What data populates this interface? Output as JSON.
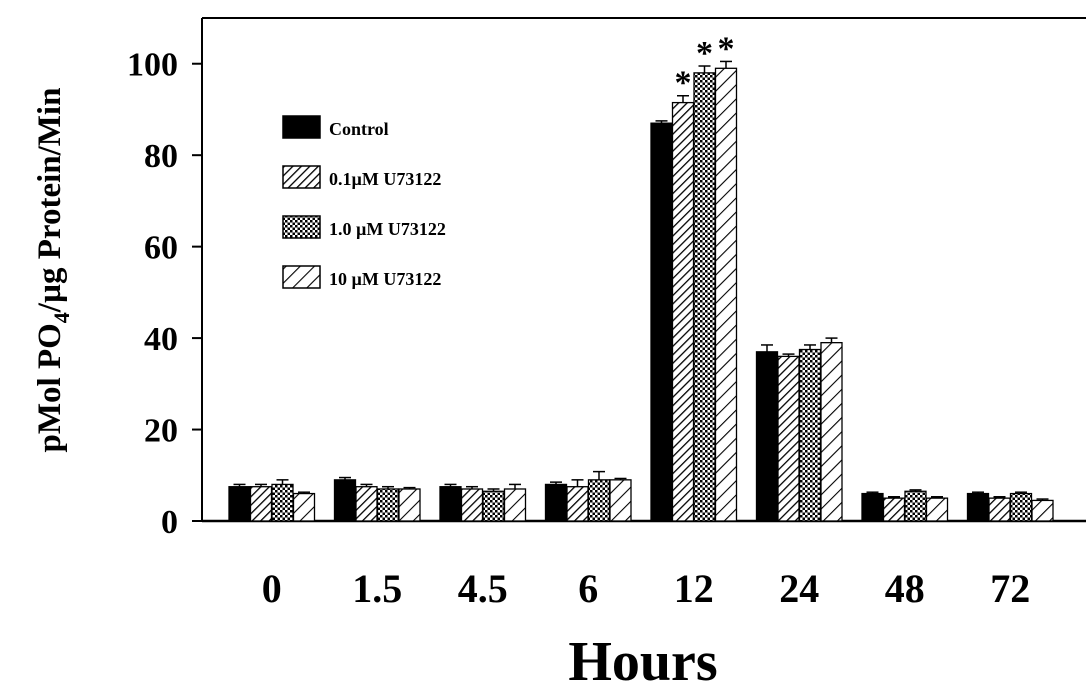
{
  "chart_data": {
    "type": "bar",
    "title": "",
    "xlabel": "Hours",
    "ylabel": "pMol PO4/µg Protein/Min",
    "ylabel_parts": {
      "pre": "pMol PO",
      "sub": "4",
      "post": "/µg Protein/Min"
    },
    "ylim": [
      0,
      110
    ],
    "yticks": [
      0,
      20,
      40,
      60,
      80,
      100
    ],
    "grid": false,
    "legend_position": "upper-left",
    "categories": [
      "0",
      "1.5",
      "4.5",
      "6",
      "12",
      "24",
      "48",
      "72"
    ],
    "series": [
      {
        "name": "Control",
        "pattern": "solid",
        "color": "#000000",
        "values": [
          7.5,
          9,
          7.5,
          8,
          87,
          37,
          6,
          6
        ],
        "errors": [
          0.5,
          0.5,
          0.5,
          0.5,
          0.5,
          1.5,
          0.3,
          0.3
        ]
      },
      {
        "name": "0.1µM U73122",
        "pattern": "hatch-dense",
        "color": "#000000",
        "values": [
          7.5,
          7.5,
          7,
          7.5,
          91.5,
          36,
          5,
          5
        ],
        "errors": [
          0.5,
          0.5,
          0.5,
          1.5,
          1.5,
          0.5,
          0.3,
          0.3
        ]
      },
      {
        "name": "1.0 µM U73122",
        "pattern": "crosshatch",
        "color": "#000000",
        "values": [
          8,
          7,
          6.5,
          9,
          98,
          37.5,
          6.5,
          6
        ],
        "errors": [
          1,
          0.5,
          0.5,
          1.8,
          1.5,
          1,
          0.3,
          0.3
        ]
      },
      {
        "name": "10 µM U73122",
        "pattern": "hatch-sparse",
        "color": "#000000",
        "values": [
          6,
          7,
          7,
          9,
          99,
          39,
          5,
          4.5
        ],
        "errors": [
          0.3,
          0.3,
          1,
          0.3,
          1.5,
          1,
          0.3,
          0.3
        ]
      }
    ],
    "annotations": [
      {
        "text": "*",
        "category": "12",
        "series": "0.1µM U73122"
      },
      {
        "text": "*",
        "category": "12",
        "series": "1.0 µM U73122"
      },
      {
        "text": "*",
        "category": "12",
        "series": "10 µM U73122"
      }
    ]
  }
}
